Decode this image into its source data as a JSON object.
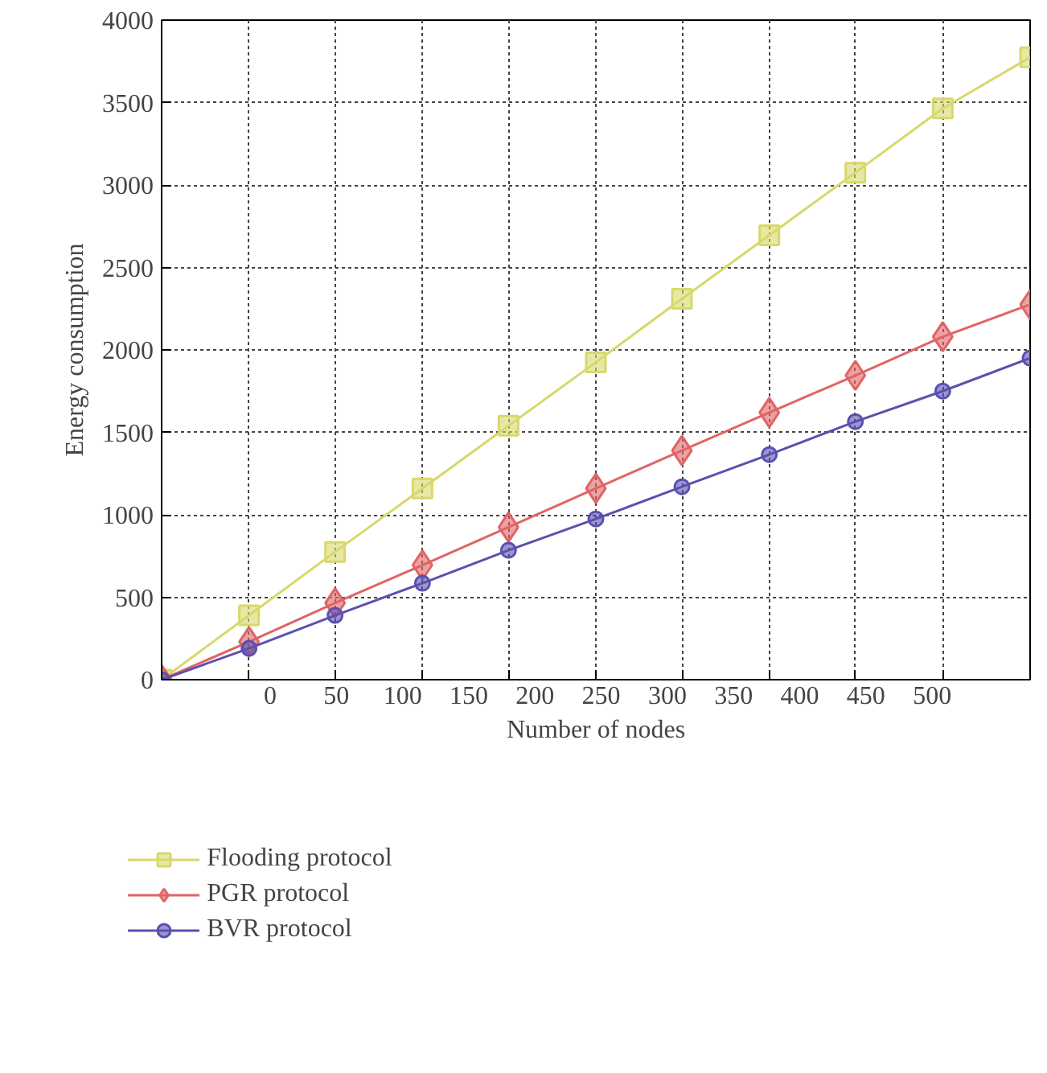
{
  "chart_data": {
    "type": "line",
    "xlabel": "Number of nodes",
    "ylabel": "Energy consumption",
    "x": [
      -82,
      -16,
      49,
      115,
      180,
      246,
      311,
      377,
      442,
      508,
      574
    ],
    "xlim": [
      -82,
      574
    ],
    "xticks": [
      {
        "value": -16,
        "label": null
      },
      {
        "value": 49,
        "label": null
      },
      {
        "value": 115,
        "label": null
      },
      {
        "value": 180,
        "label": null
      },
      {
        "value": 246,
        "label": null
      },
      {
        "value": 311,
        "label": null
      },
      {
        "value": 377,
        "label": null
      },
      {
        "value": 442,
        "label": null
      },
      {
        "value": 508,
        "label": null
      },
      0,
      50,
      100,
      150,
      200,
      250,
      300,
      350,
      400,
      450,
      500
    ],
    "ylim": [
      0,
      4000
    ],
    "yticks": [
      0,
      500,
      1000,
      1500,
      2000,
      2500,
      3000,
      3500,
      4000
    ],
    "grid": true,
    "legend": "bottom",
    "series": [
      {
        "name": "Flooding protocol",
        "color": "#d8d86a",
        "marker": "square",
        "values": [
          0,
          390,
          775,
          1160,
          1540,
          1925,
          2310,
          2695,
          3075,
          3465,
          3775
        ]
      },
      {
        "name": "PGR protocol",
        "color": "#e06464",
        "marker": "diamond",
        "values": [
          0,
          230,
          465,
          695,
          925,
          1160,
          1390,
          1620,
          1845,
          2080,
          2275
        ]
      },
      {
        "name": "BVR protocol",
        "color": "#5a50b0",
        "marker": "circle",
        "values": [
          0,
          190,
          390,
          585,
          785,
          975,
          1170,
          1365,
          1565,
          1750,
          1950
        ]
      }
    ]
  }
}
